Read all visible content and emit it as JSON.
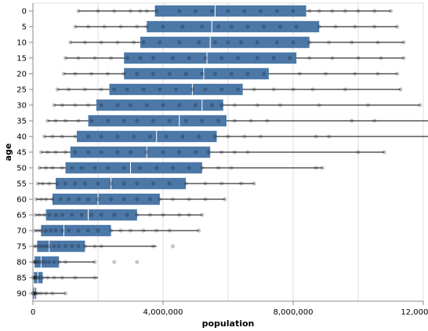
{
  "chart_data": {
    "type": "boxplot",
    "title": "",
    "xlabel": "population",
    "ylabel": "age",
    "orientation": "horizontal",
    "xlim": [
      0,
      12000000
    ],
    "x_ticks": [
      0,
      4000000,
      8000000,
      12000000
    ],
    "x_tick_labels": [
      "0",
      "4,000,000",
      "8,000,000",
      "12,000,000"
    ],
    "grid": true,
    "legend": "none",
    "colors": {
      "box": "#4c78a8",
      "median": "#ffffff",
      "whisker": "#000000",
      "point": "#000000"
    },
    "categories": [
      "0",
      "5",
      "10",
      "15",
      "20",
      "25",
      "30",
      "35",
      "40",
      "45",
      "50",
      "55",
      "60",
      "65",
      "70",
      "75",
      "80",
      "85",
      "90"
    ],
    "boxes": [
      {
        "age": "0",
        "min": 1400000,
        "q1": 3750000,
        "median": 5600000,
        "q3": 8400000,
        "max": 11000000
      },
      {
        "age": "5",
        "min": 1300000,
        "q1": 3500000,
        "median": 5500000,
        "q3": 8800000,
        "max": 11200000
      },
      {
        "age": "10",
        "min": 1150000,
        "q1": 3300000,
        "median": 5450000,
        "q3": 8500000,
        "max": 11400000
      },
      {
        "age": "15",
        "min": 1000000,
        "q1": 2800000,
        "median": 5350000,
        "q3": 8100000,
        "max": 11400000
      },
      {
        "age": "20",
        "min": 950000,
        "q1": 2800000,
        "median": 5250000,
        "q3": 7250000,
        "max": 11200000
      },
      {
        "age": "25",
        "min": 750000,
        "q1": 2350000,
        "median": 4900000,
        "q3": 6450000,
        "max": 11300000
      },
      {
        "age": "30",
        "min": 650000,
        "q1": 1950000,
        "median": 5200000,
        "q3": 5850000,
        "max": 11900000
      },
      {
        "age": "35",
        "min": 450000,
        "q1": 1700000,
        "median": 4500000,
        "q3": 5950000,
        "max": 12600000
      },
      {
        "age": "40",
        "min": 350000,
        "q1": 1350000,
        "median": 3800000,
        "q3": 5650000,
        "max": 12300000
      },
      {
        "age": "45",
        "min": 250000,
        "q1": 1150000,
        "median": 3500000,
        "q3": 5450000,
        "max": 10800000
      },
      {
        "age": "50",
        "min": 200000,
        "q1": 1000000,
        "median": 3000000,
        "q3": 5200000,
        "max": 8900000
      },
      {
        "age": "55",
        "min": 150000,
        "q1": 700000,
        "median": 2400000,
        "q3": 4700000,
        "max": 6800000
      },
      {
        "age": "60",
        "min": 100000,
        "q1": 600000,
        "median": 2000000,
        "q3": 3900000,
        "max": 5900000
      },
      {
        "age": "65",
        "min": 80000,
        "q1": 400000,
        "median": 1700000,
        "q3": 3200000,
        "max": 5200000
      },
      {
        "age": "70",
        "min": 50000,
        "q1": 250000,
        "median": 950000,
        "q3": 2400000,
        "max": 5100000
      },
      {
        "age": "75",
        "min": 30000,
        "q1": 130000,
        "median": 500000,
        "q3": 1600000,
        "max": 3800000
      },
      {
        "age": "80",
        "min": 15000,
        "q1": 50000,
        "median": 250000,
        "q3": 800000,
        "max": 1900000
      },
      {
        "age": "85",
        "min": 5000,
        "q1": 30000,
        "median": 150000,
        "q3": 300000,
        "max": 2000000
      },
      {
        "age": "90",
        "min": 3000,
        "q1": 10000,
        "median": 50000,
        "q3": 100000,
        "max": 1000000
      }
    ],
    "points": [
      {
        "age": "0",
        "x": [
          1400000,
          2000000,
          2500000,
          3000000,
          3300000,
          3500000,
          3800000,
          4500000,
          5000000,
          5500000,
          6000000,
          6500000,
          7000000,
          7500000,
          8000000,
          8500000,
          8800000,
          9200000,
          9600000,
          10000000,
          10500000,
          11000000
        ]
      },
      {
        "age": "5",
        "x": [
          1300000,
          1700000,
          2200000,
          2700000,
          3200000,
          3500000,
          4000000,
          4600000,
          5200000,
          5700000,
          6100000,
          6600000,
          7100000,
          7600000,
          8100000,
          8800000,
          9300000,
          9900000,
          10500000,
          11200000
        ]
      },
      {
        "age": "10",
        "x": [
          1150000,
          1600000,
          2100000,
          2600000,
          3100000,
          3400000,
          3900000,
          4500000,
          5100000,
          5600000,
          6000000,
          6400000,
          6900000,
          7500000,
          8000000,
          8500000,
          9100000,
          9800000,
          10600000,
          11400000
        ]
      },
      {
        "age": "15",
        "x": [
          1000000,
          1400000,
          1900000,
          2400000,
          2900000,
          3300000,
          3700000,
          4300000,
          4800000,
          5300000,
          5800000,
          6300000,
          6900000,
          7400000,
          7900000,
          8500000,
          9200000,
          10000000,
          10700000,
          11400000
        ]
      },
      {
        "age": "20",
        "x": [
          950000,
          1300000,
          1800000,
          2300000,
          2800000,
          3200000,
          3700000,
          4200000,
          4700000,
          5200000,
          5600000,
          6100000,
          6600000,
          7100000,
          8200000,
          9000000,
          9900000,
          10600000,
          11200000
        ]
      },
      {
        "age": "25",
        "x": [
          750000,
          1100000,
          1600000,
          2100000,
          2500000,
          2900000,
          3400000,
          3900000,
          4400000,
          4900000,
          5300000,
          5800000,
          6300000,
          6800000,
          7400000,
          8000000,
          8600000,
          9600000,
          11300000
        ]
      },
      {
        "age": "30",
        "x": [
          650000,
          900000,
          1300000,
          1700000,
          2100000,
          2600000,
          3000000,
          3500000,
          4000000,
          4500000,
          5000000,
          5500000,
          5800000,
          6200000,
          6900000,
          7600000,
          8800000,
          10300000,
          11900000
        ]
      },
      {
        "age": "35",
        "x": [
          450000,
          700000,
          1000000,
          1400000,
          1800000,
          2300000,
          2800000,
          3200000,
          3700000,
          4200000,
          4700000,
          5200000,
          5700000,
          6200000,
          6700000,
          7200000,
          9800000,
          10500000,
          12600000
        ]
      },
      {
        "age": "40",
        "x": [
          350000,
          600000,
          900000,
          1300000,
          1700000,
          2100000,
          2600000,
          3100000,
          3600000,
          4100000,
          4600000,
          5100000,
          5600000,
          6000000,
          6500000,
          7000000,
          8700000,
          9100000,
          12300000
        ]
      },
      {
        "age": "45",
        "x": [
          250000,
          450000,
          700000,
          1000000,
          1300000,
          1700000,
          2100000,
          2600000,
          3000000,
          3500000,
          4000000,
          4500000,
          5000000,
          5400000,
          5800000,
          6200000,
          6600000,
          10000000,
          10800000
        ]
      },
      {
        "age": "50",
        "x": [
          200000,
          400000,
          600000,
          900000,
          1200000,
          1500000,
          1900000,
          2300000,
          2800000,
          3300000,
          3800000,
          4300000,
          4800000,
          5200000,
          5700000,
          6100000,
          8700000,
          8900000
        ]
      },
      {
        "age": "55",
        "x": [
          150000,
          300000,
          500000,
          750000,
          1000000,
          1300000,
          1600000,
          2000000,
          2400000,
          2800000,
          3200000,
          3700000,
          4200000,
          4700000,
          5300000,
          5800000,
          6400000,
          6800000
        ]
      },
      {
        "age": "60",
        "x": [
          100000,
          250000,
          400000,
          600000,
          850000,
          1100000,
          1400000,
          1700000,
          2000000,
          2400000,
          2800000,
          3200000,
          3600000,
          3900000,
          4300000,
          4800000,
          5300000,
          5900000
        ]
      },
      {
        "age": "65",
        "x": [
          80000,
          200000,
          350000,
          500000,
          700000,
          900000,
          1200000,
          1500000,
          1800000,
          2100000,
          2500000,
          2900000,
          3200000,
          3600000,
          4000000,
          4500000,
          4800000,
          5200000
        ]
      },
      {
        "age": "70",
        "x": [
          50000,
          150000,
          250000,
          400000,
          550000,
          700000,
          900000,
          1100000,
          1400000,
          1700000,
          2000000,
          2400000,
          2700000,
          3000000,
          3400000,
          3800000,
          4200000,
          5100000
        ]
      },
      {
        "age": "75",
        "x": [
          30000,
          100000,
          200000,
          300000,
          400000,
          500000,
          650000,
          800000,
          1000000,
          1200000,
          1400000,
          1600000,
          1900000,
          2100000,
          3700000,
          4300000
        ]
      },
      {
        "age": "80",
        "x": [
          15000,
          40000,
          80000,
          130000,
          200000,
          280000,
          380000,
          500000,
          650000,
          800000,
          1000000,
          1900000,
          2500000,
          3200000
        ]
      },
      {
        "age": "85",
        "x": [
          5000,
          20000,
          40000,
          70000,
          100000,
          150000,
          200000,
          300000,
          450000,
          650000,
          900000,
          1300000,
          1900000
        ]
      },
      {
        "age": "90",
        "x": [
          3000,
          8000,
          15000,
          25000,
          40000,
          60000,
          90000,
          150000,
          250000,
          400000,
          600000,
          1000000
        ]
      }
    ]
  }
}
